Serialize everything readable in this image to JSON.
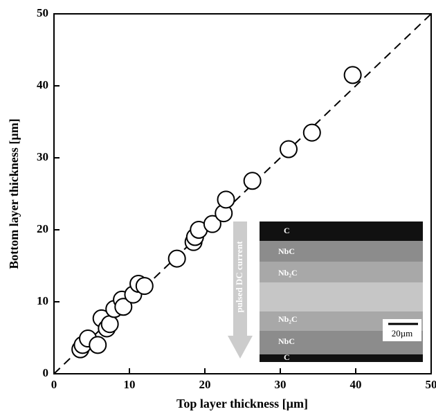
{
  "chart_data": {
    "type": "scatter",
    "xlabel": "Top layer thickness [µm]",
    "ylabel": "Bottom layer thickness [µm]",
    "x": [
      3.5,
      3.8,
      4.5,
      5.8,
      6.3,
      7.0,
      7.4,
      8.0,
      9.0,
      9.2,
      10.5,
      11.2,
      12.0,
      16.3,
      18.5,
      18.7,
      19.2,
      21.0,
      22.5,
      22.8,
      26.3,
      31.1,
      34.2,
      39.6
    ],
    "values": [
      3.4,
      4.0,
      4.9,
      4.0,
      7.7,
      6.3,
      6.9,
      9.0,
      10.3,
      9.3,
      11.0,
      12.5,
      12.2,
      16.0,
      18.3,
      19.0,
      20.0,
      20.8,
      22.3,
      24.2,
      26.8,
      31.2,
      33.5,
      41.5
    ],
    "diagonal": {
      "x": [
        0,
        50
      ],
      "y": [
        0,
        50
      ]
    },
    "xlim": [
      0,
      50
    ],
    "ylim": [
      0,
      50
    ],
    "xticks": [
      0,
      10,
      20,
      30,
      40,
      50
    ],
    "yticks": [
      0,
      10,
      20,
      30,
      40,
      50
    ],
    "inset": {
      "arrow_label": "pulsed DC current",
      "layers": [
        "C",
        "NbC",
        "Nb₂C",
        "Nb₂C",
        "NbC",
        "C"
      ],
      "scale_bar": "20µm"
    }
  }
}
